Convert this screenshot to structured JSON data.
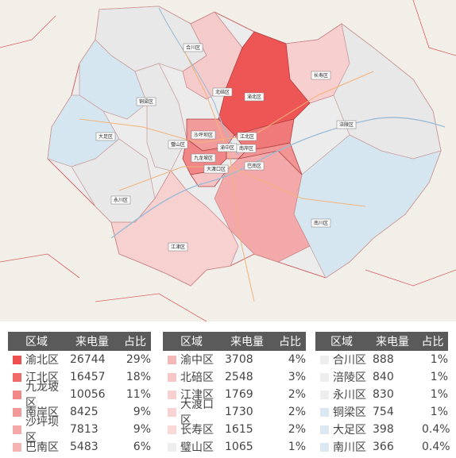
{
  "map": {
    "district_labels": [
      {
        "id": "hechuan",
        "text": "合川区"
      },
      {
        "id": "beibei",
        "text": "北碚区"
      },
      {
        "id": "yubei",
        "text": "渝北区"
      },
      {
        "id": "tongliang",
        "text": "铜梁区"
      },
      {
        "id": "changshou",
        "text": "长寿区"
      },
      {
        "id": "dazu",
        "text": "大足区"
      },
      {
        "id": "shapingba",
        "text": "沙坪坝区"
      },
      {
        "id": "jiangbei",
        "text": "江北区"
      },
      {
        "id": "bishan",
        "text": "璧山区"
      },
      {
        "id": "yuzhong",
        "text": "渝中区"
      },
      {
        "id": "nanan",
        "text": "南岸区"
      },
      {
        "id": "jiulongpo",
        "text": "九龙坡区"
      },
      {
        "id": "dadukou",
        "text": "大渡口区"
      },
      {
        "id": "banan",
        "text": "巴南区"
      },
      {
        "id": "fuling",
        "text": "涪陵区"
      },
      {
        "id": "yongchuan",
        "text": "永川区"
      },
      {
        "id": "jiangjin",
        "text": "江津区"
      },
      {
        "id": "nanchuan",
        "text": "南川区"
      }
    ],
    "colors": {
      "base": "#f2efe9",
      "tier1": "#ee5555",
      "tier2": "#f07a7a",
      "tier3": "#f3a0a0",
      "tier4": "#f7c3c3",
      "tier5": "#f9dada",
      "grey": "#e4e4e4",
      "blue": "#d5e6f1",
      "road": "#f6c9a0"
    }
  },
  "tables": [
    {
      "headers": [
        "区域",
        "来电量",
        "占比"
      ],
      "rows": [
        {
          "region": "渝北区",
          "calls": "26744",
          "share": "29%",
          "color": "#ee5050"
        },
        {
          "region": "江北区",
          "calls": "16457",
          "share": "18%",
          "color": "#f06a6a"
        },
        {
          "region": "九龙坡区",
          "calls": "10056",
          "share": "11%",
          "color": "#f28888"
        },
        {
          "region": "南岸区",
          "calls": "8425",
          "share": "9%",
          "color": "#f29a9a"
        },
        {
          "region": "沙坪坝区",
          "calls": "7813",
          "share": "9%",
          "color": "#f4a8a8"
        },
        {
          "region": "巴南区",
          "calls": "5483",
          "share": "6%",
          "color": "#f5b4b4"
        }
      ]
    },
    {
      "headers": [
        "区域",
        "来电量",
        "占比"
      ],
      "rows": [
        {
          "region": "渝中区",
          "calls": "3708",
          "share": "4%",
          "color": "#f5b8b8"
        },
        {
          "region": "北碚区",
          "calls": "2548",
          "share": "3%",
          "color": "#f7c6c6"
        },
        {
          "region": "江津区",
          "calls": "1769",
          "share": "2%",
          "color": "#f8d0d0"
        },
        {
          "region": "大渡口区",
          "calls": "1730",
          "share": "2%",
          "color": "#f8d2d2"
        },
        {
          "region": "长寿区",
          "calls": "1615",
          "share": "2%",
          "color": "#f9d8d8"
        },
        {
          "region": "璧山区",
          "calls": "1065",
          "share": "1%",
          "color": "#eeeeee"
        }
      ]
    },
    {
      "headers": [
        "区域",
        "来电量",
        "占比"
      ],
      "rows": [
        {
          "region": "合川区",
          "calls": "888",
          "share": "1%",
          "color": "#eeeeee"
        },
        {
          "region": "涪陵区",
          "calls": "840",
          "share": "1%",
          "color": "#eeeeee"
        },
        {
          "region": "永川区",
          "calls": "830",
          "share": "1%",
          "color": "#eeeeee"
        },
        {
          "region": "铜梁区",
          "calls": "754",
          "share": "1%",
          "color": "#dbe8f2"
        },
        {
          "region": "大足区",
          "calls": "398",
          "share": "0.4%",
          "color": "#dbe8f2"
        },
        {
          "region": "南川区",
          "calls": "366",
          "share": "0.4%",
          "color": "#dbe8f2"
        }
      ]
    }
  ]
}
